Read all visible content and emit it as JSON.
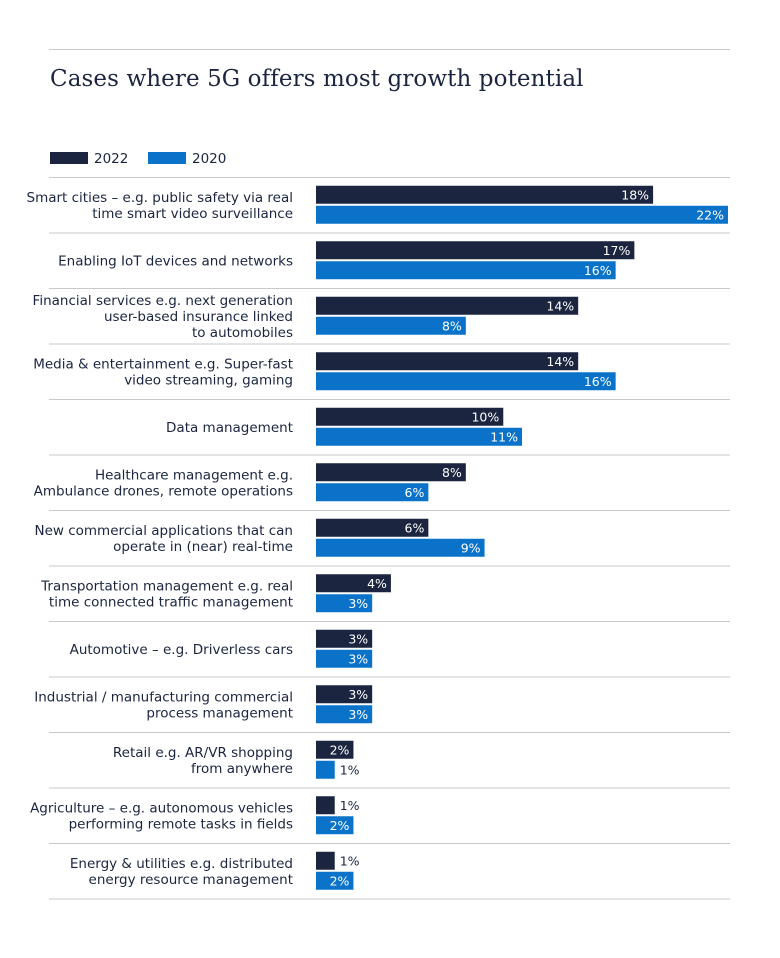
{
  "title": "Cases where 5G offers most growth potential",
  "colors": {
    "2022": "#1b2540",
    "2020": "#0a73c9",
    "divider": "#c7c9cd"
  },
  "chart_data": {
    "type": "bar",
    "orientation": "horizontal",
    "title": "Cases where 5G offers most growth potential",
    "legend_position": "top-left",
    "value_suffix": "%",
    "xlim": [
      0,
      22
    ],
    "categories": [
      [
        "Smart cities – e.g. public safety via real",
        "time smart video surveillance"
      ],
      [
        "Enabling IoT devices and networks"
      ],
      [
        "Financial services e.g. next generation",
        "user-based insurance linked",
        "to automobiles"
      ],
      [
        "Media & entertainment e.g. Super-fast",
        "video streaming, gaming"
      ],
      [
        "Data management"
      ],
      [
        "Healthcare management e.g.",
        "Ambulance drones, remote operations"
      ],
      [
        "New commercial applications that can",
        "operate in (near) real-time"
      ],
      [
        "Transportation management e.g. real",
        "time connected traffic management"
      ],
      [
        "Automotive – e.g. Driverless cars"
      ],
      [
        "Industrial / manufacturing commercial",
        "process management"
      ],
      [
        "Retail e.g. AR/VR shopping",
        "from anywhere"
      ],
      [
        "Agriculture – e.g. autonomous vehicles",
        "performing remote tasks in fields"
      ],
      [
        "Energy & utilities e.g. distributed",
        "energy resource management"
      ]
    ],
    "series": [
      {
        "name": "2022",
        "values": [
          18,
          17,
          14,
          14,
          10,
          8,
          6,
          4,
          3,
          3,
          2,
          1,
          1
        ]
      },
      {
        "name": "2020",
        "values": [
          22,
          16,
          8,
          16,
          11,
          6,
          9,
          3,
          3,
          3,
          1,
          2,
          2
        ]
      }
    ]
  }
}
